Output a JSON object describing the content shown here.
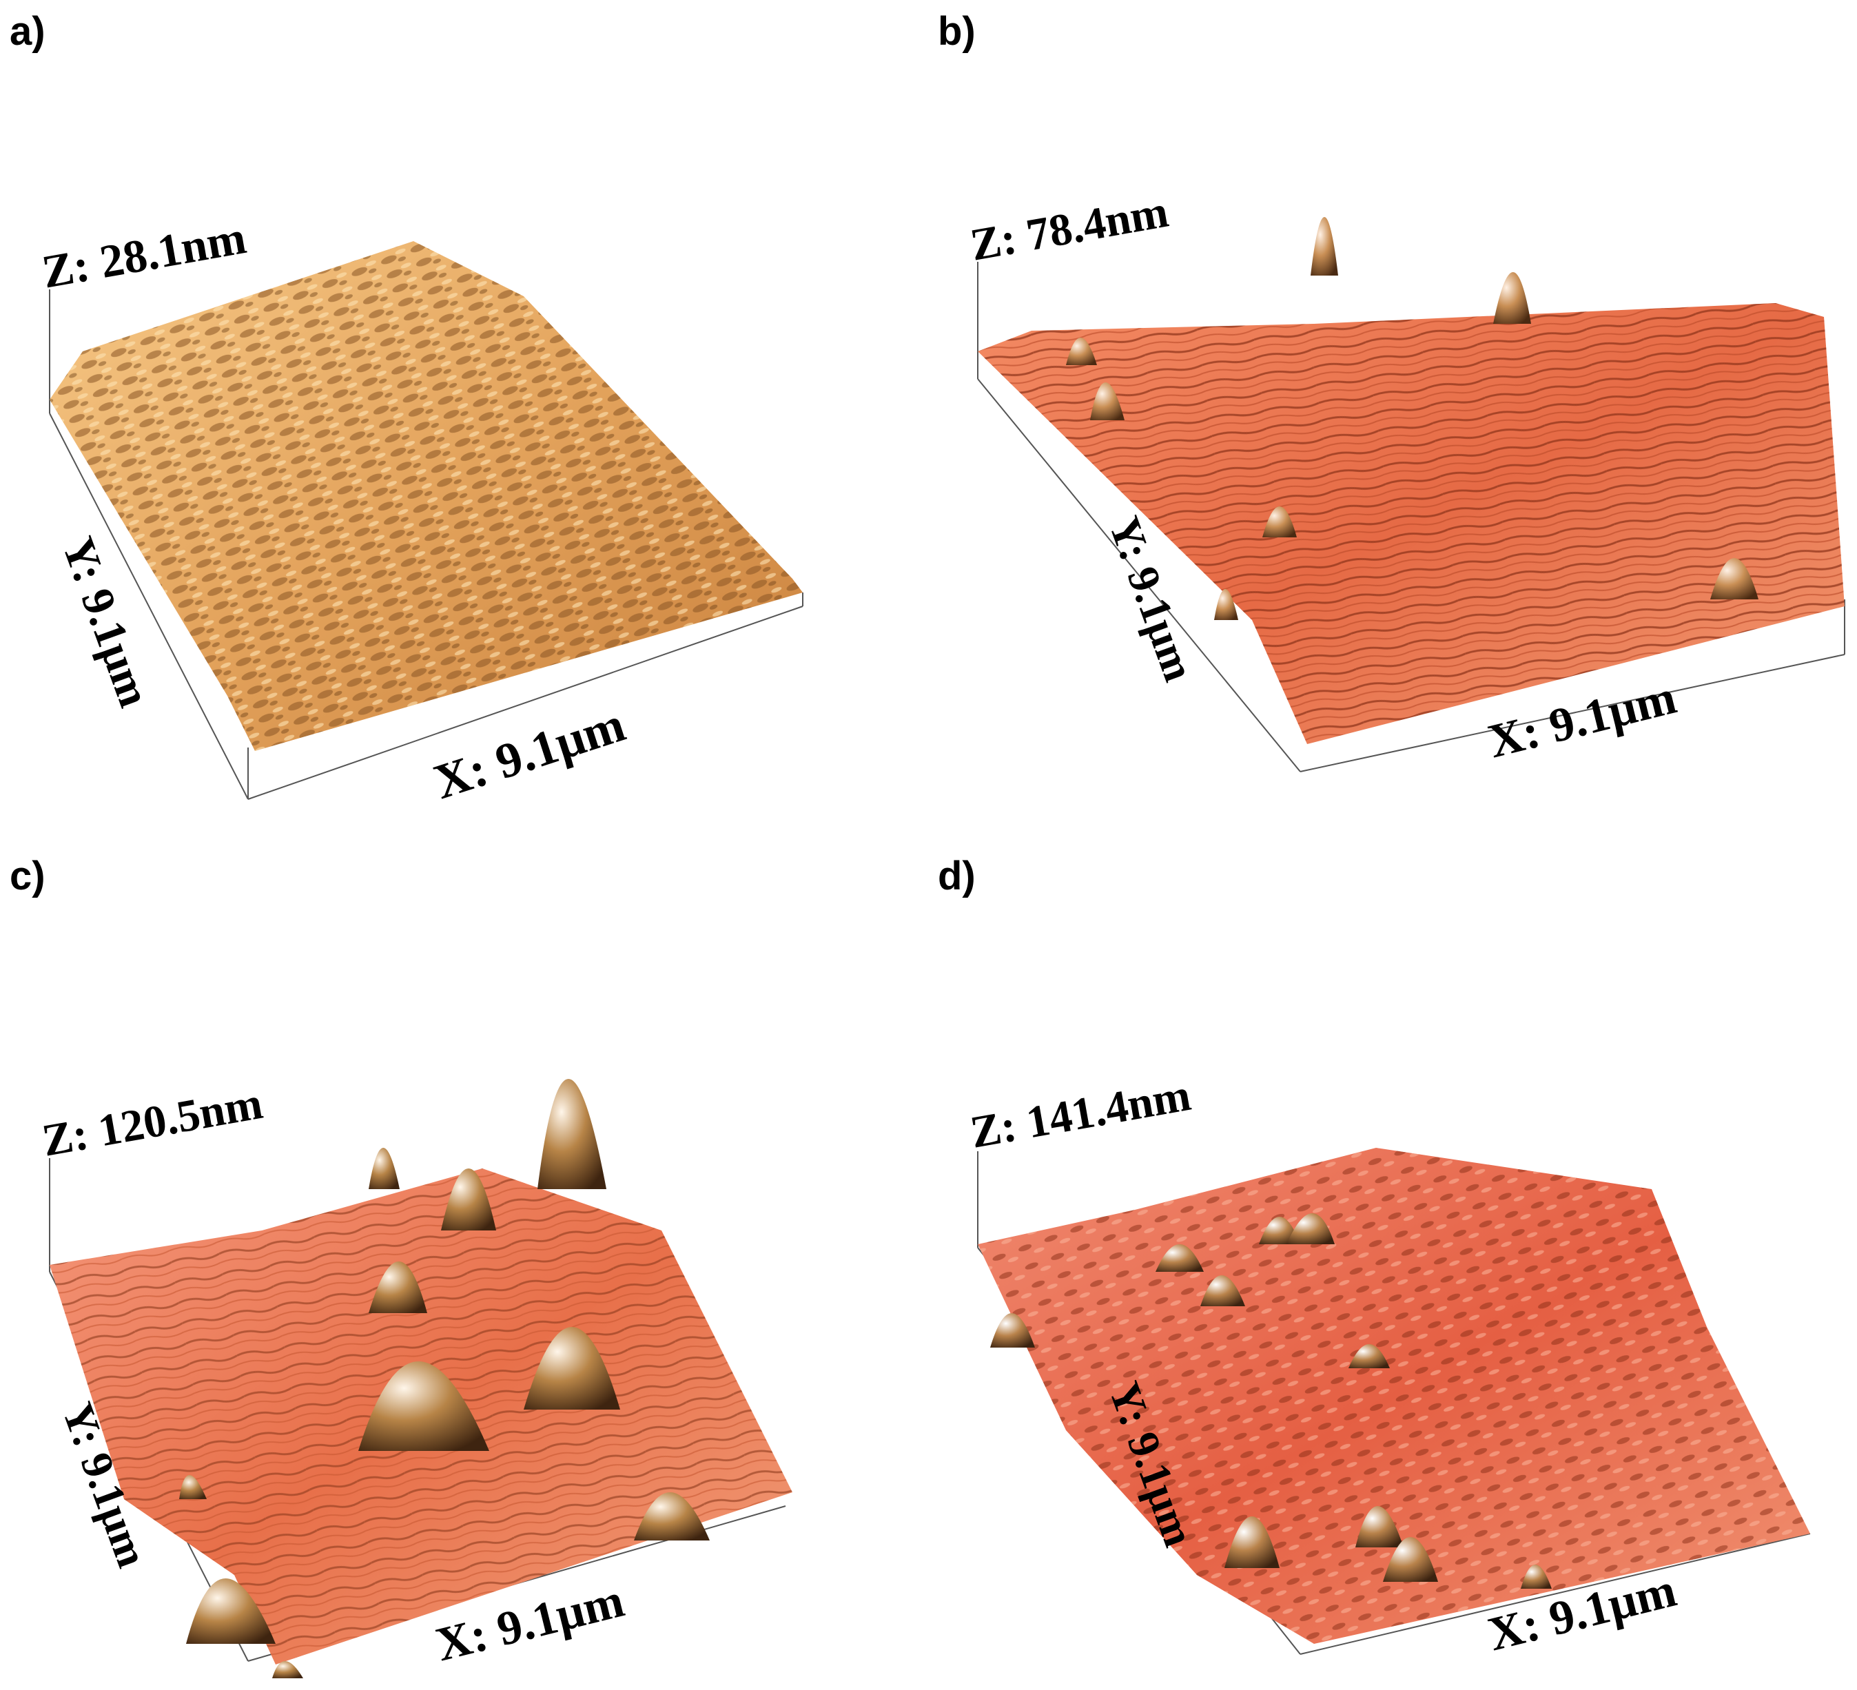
{
  "panels": [
    {
      "letter": "a)",
      "z_label": "Z: 28.1nm",
      "x_label": "X: 9.1µm",
      "y_label": "Y: 9.1µm",
      "palette": {
        "base": "#e9a65c",
        "light": "#fbdca5",
        "dark": "#8a5524",
        "peak_light": "#fff3dc",
        "peak_dark": "#5b3612"
      },
      "surface_texture": "granular ridges"
    },
    {
      "letter": "b)",
      "z_label": "Z: 78.4nm",
      "x_label": "X: 9.1µm",
      "y_label": "Y: 9.1µm",
      "palette": {
        "base": "#e86a45",
        "light": "#f8a98a",
        "dark": "#8c3218",
        "peak_light": "#fff1e5",
        "peak_dark": "#4a2a12"
      },
      "surface_texture": "striated with isolated peaks"
    },
    {
      "letter": "c)",
      "z_label": "Z: 120.5nm",
      "x_label": "X: 9.1µm",
      "y_label": "Y: 9.1µm",
      "palette": {
        "base": "#e8704a",
        "light": "#f8b090",
        "dark": "#8e3a1c",
        "peak_light": "#fff6ea",
        "peak_dark": "#3e2410"
      },
      "surface_texture": "striated with large peaks"
    },
    {
      "letter": "d)",
      "z_label": "Z: 141.4nm",
      "x_label": "X: 9.1µm",
      "y_label": "Y: 9.1µm",
      "palette": {
        "base": "#e55f43",
        "light": "#f7a083",
        "dark": "#8a2e16",
        "peak_light": "#ffffff",
        "peak_dark": "#3a2210"
      },
      "surface_texture": "grainy with scattered peaks"
    }
  ]
}
